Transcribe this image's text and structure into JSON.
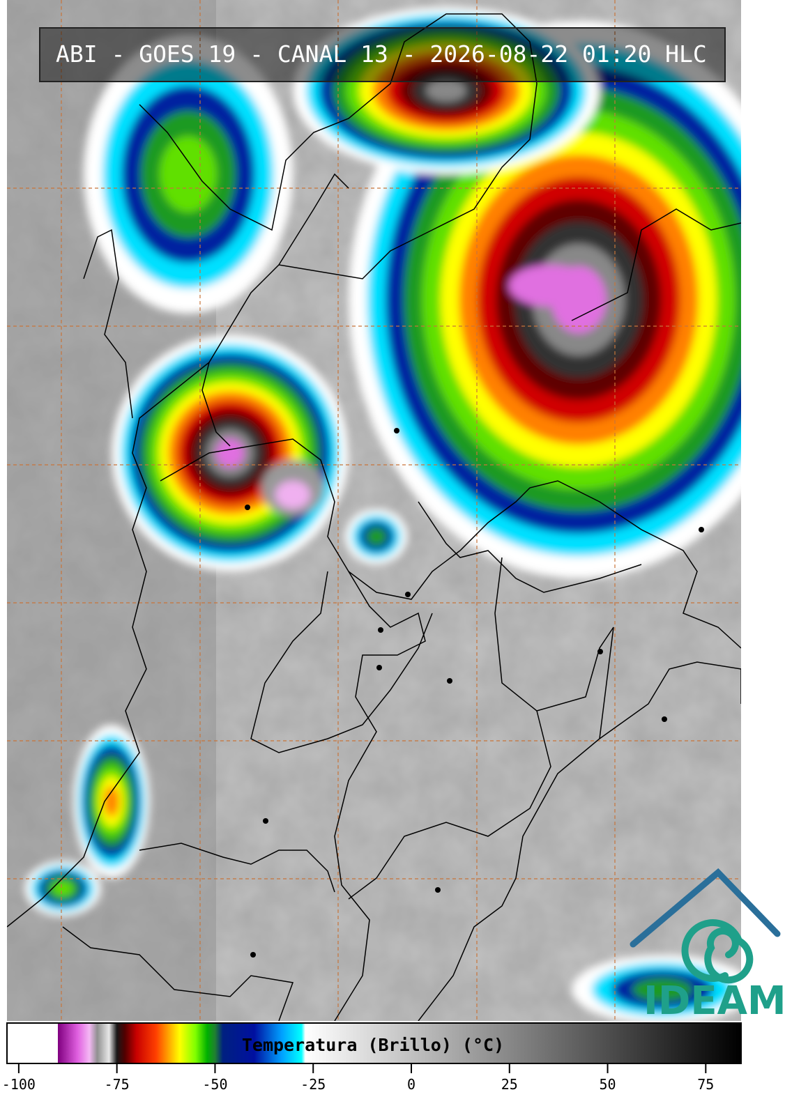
{
  "header": {
    "title": "ABI - GOES 19 - CANAL 13 - 2026-08-22 01:20 HLC"
  },
  "logo": {
    "text": "IDEAM"
  },
  "colorbar": {
    "label": "Temperatura (Brillo) (°C)",
    "lim": [
      -103,
      84
    ],
    "ticks": [
      -100,
      -75,
      -50,
      -25,
      0,
      25,
      50,
      75
    ],
    "stops": [
      {
        "value": -103,
        "color": "#ffffff"
      },
      {
        "value": -90,
        "color": "#ffffff"
      },
      {
        "value": -90,
        "color": "#800080"
      },
      {
        "value": -85,
        "color": "#e060e0"
      },
      {
        "value": -82,
        "color": "#f4b8f4"
      },
      {
        "value": -80,
        "color": "#909090"
      },
      {
        "value": -77,
        "color": "#e8e8e8"
      },
      {
        "value": -75,
        "color": "#181818"
      },
      {
        "value": -73,
        "color": "#500000"
      },
      {
        "value": -70,
        "color": "#c80000"
      },
      {
        "value": -65,
        "color": "#ff4000"
      },
      {
        "value": -62,
        "color": "#ffa000"
      },
      {
        "value": -59,
        "color": "#ffff00"
      },
      {
        "value": -55,
        "color": "#80ff00"
      },
      {
        "value": -52,
        "color": "#00b000"
      },
      {
        "value": -50,
        "color": "#208030"
      },
      {
        "value": -48,
        "color": "#002080"
      },
      {
        "value": -40,
        "color": "#0010a0"
      },
      {
        "value": -33,
        "color": "#00a0ff"
      },
      {
        "value": -28,
        "color": "#00ffff"
      },
      {
        "value": -27,
        "color": "#ffffff"
      },
      {
        "value": 84,
        "color": "#000000"
      }
    ]
  }
}
